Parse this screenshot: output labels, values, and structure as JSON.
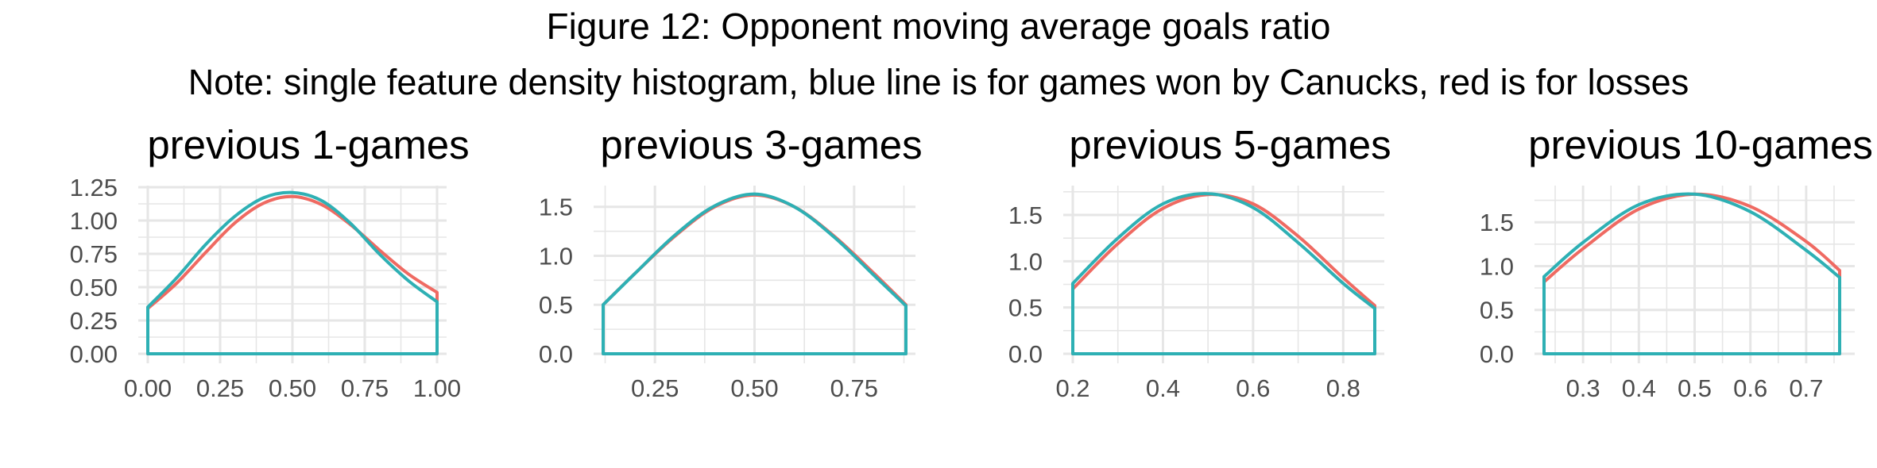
{
  "figure": {
    "title": "Figure 12: Opponent moving average goals ratio",
    "note": "Note: single feature density histogram, blue line is for games won by Canucks, red is for losses"
  },
  "colors": {
    "won": "#2eb0b4",
    "lost": "#ef6a62",
    "grid": "#e6e6e6",
    "axis_text": "#4d4d4d"
  },
  "chart_data": [
    {
      "type": "area",
      "title": "previous 1-games",
      "xlim": [
        0,
        1
      ],
      "ylim": [
        0,
        1.25
      ],
      "xticks": [
        "0.00",
        "0.25",
        "0.50",
        "0.75",
        "1.00"
      ],
      "yticks": [
        "0.00",
        "0.25",
        "0.50",
        "0.75",
        "1.00",
        "1.25"
      ],
      "series": [
        {
          "color": "#ef6a62",
          "x": [
            0,
            0.1,
            0.2,
            0.3,
            0.4,
            0.5,
            0.6,
            0.7,
            0.8,
            0.9,
            1.0
          ],
          "y": [
            0.34,
            0.53,
            0.76,
            0.98,
            1.13,
            1.18,
            1.12,
            0.97,
            0.78,
            0.6,
            0.46
          ]
        },
        {
          "color": "#2eb0b4",
          "x": [
            0,
            0.1,
            0.2,
            0.3,
            0.4,
            0.5,
            0.6,
            0.7,
            0.8,
            0.9,
            1.0
          ],
          "y": [
            0.35,
            0.57,
            0.82,
            1.03,
            1.17,
            1.21,
            1.15,
            0.98,
            0.75,
            0.55,
            0.39
          ]
        }
      ]
    },
    {
      "type": "area",
      "title": "previous 3-games",
      "xlim": [
        0.12,
        0.88
      ],
      "ylim": [
        0,
        1.7
      ],
      "xticks": [
        "0.25",
        "0.50",
        "0.75"
      ],
      "yticks": [
        "0.0",
        "0.5",
        "1.0",
        "1.5"
      ],
      "series": [
        {
          "color": "#ef6a62",
          "x": [
            0.12,
            0.2,
            0.3,
            0.4,
            0.5,
            0.6,
            0.7,
            0.8,
            0.88
          ],
          "y": [
            0.5,
            0.82,
            1.2,
            1.5,
            1.62,
            1.5,
            1.2,
            0.82,
            0.5
          ]
        },
        {
          "color": "#2eb0b4",
          "x": [
            0.12,
            0.2,
            0.3,
            0.4,
            0.5,
            0.6,
            0.7,
            0.8,
            0.88
          ],
          "y": [
            0.5,
            0.82,
            1.21,
            1.51,
            1.63,
            1.5,
            1.19,
            0.8,
            0.49
          ]
        }
      ]
    },
    {
      "type": "area",
      "title": "previous 5-games",
      "xlim": [
        0.2,
        0.87
      ],
      "ylim": [
        0,
        1.8
      ],
      "xticks": [
        "0.2",
        "0.4",
        "0.6",
        "0.8"
      ],
      "yticks": [
        "0.0",
        "0.5",
        "1.0",
        "1.5"
      ],
      "series": [
        {
          "color": "#ef6a62",
          "x": [
            0.2,
            0.3,
            0.4,
            0.5,
            0.6,
            0.7,
            0.8,
            0.87
          ],
          "y": [
            0.7,
            1.19,
            1.57,
            1.72,
            1.62,
            1.27,
            0.82,
            0.52
          ]
        },
        {
          "color": "#2eb0b4",
          "x": [
            0.2,
            0.3,
            0.4,
            0.5,
            0.6,
            0.7,
            0.8,
            0.87
          ],
          "y": [
            0.76,
            1.25,
            1.62,
            1.73,
            1.58,
            1.2,
            0.76,
            0.49
          ]
        }
      ]
    },
    {
      "type": "area",
      "title": "previous 10-games",
      "xlim": [
        0.23,
        0.77
      ],
      "ylim": [
        0,
        1.9
      ],
      "xticks": [
        "0.3",
        "0.4",
        "0.5",
        "0.6",
        "0.7"
      ],
      "yticks": [
        "0.0",
        "0.5",
        "1.0",
        "1.5"
      ],
      "series": [
        {
          "color": "#ef6a62",
          "x": [
            0.23,
            0.3,
            0.4,
            0.5,
            0.6,
            0.7,
            0.76
          ],
          "y": [
            0.82,
            1.2,
            1.65,
            1.82,
            1.68,
            1.28,
            0.95
          ]
        },
        {
          "color": "#2eb0b4",
          "x": [
            0.23,
            0.3,
            0.4,
            0.5,
            0.6,
            0.7,
            0.76
          ],
          "y": [
            0.88,
            1.27,
            1.7,
            1.82,
            1.62,
            1.18,
            0.87
          ]
        }
      ]
    }
  ]
}
